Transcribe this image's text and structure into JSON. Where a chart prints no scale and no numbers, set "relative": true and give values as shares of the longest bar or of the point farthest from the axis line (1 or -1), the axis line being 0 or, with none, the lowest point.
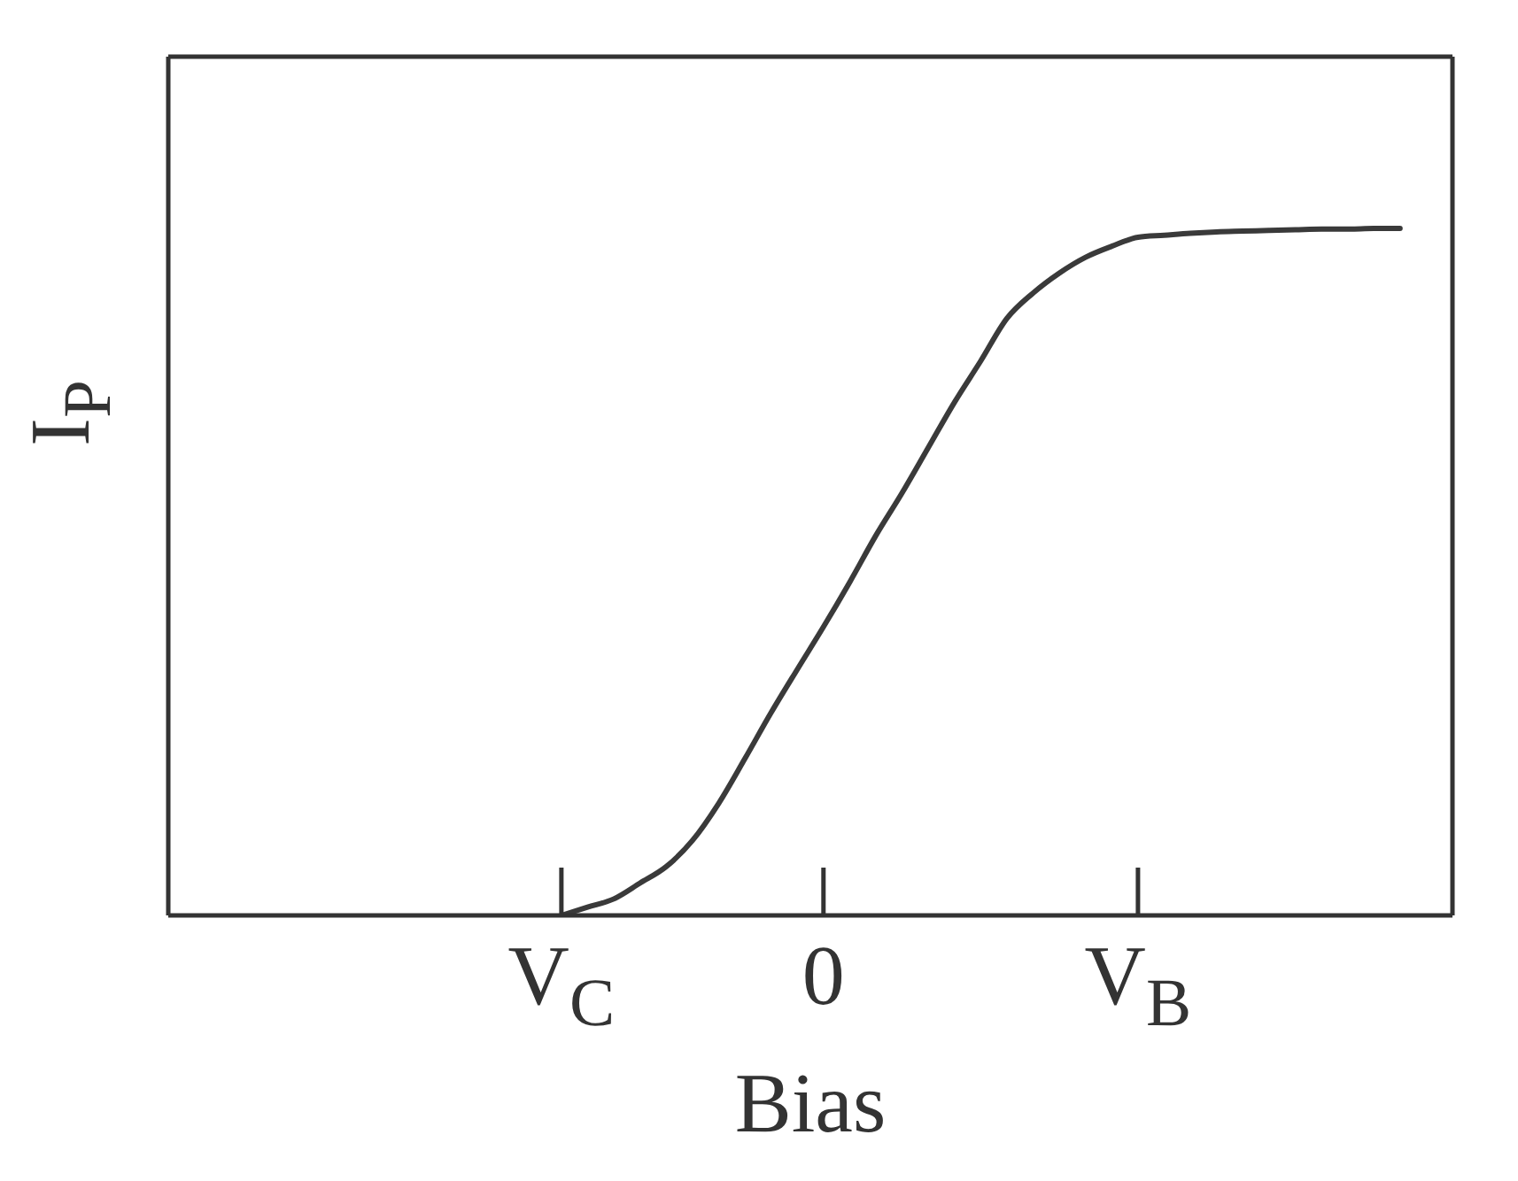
{
  "chart_data": {
    "type": "line",
    "xlabel": "Bias",
    "ylabel": "I$_{P}$",
    "relative": true,
    "color": "#3a3a3a",
    "categories": [
      null,
      null,
      null,
      null,
      null,
      null,
      null,
      null,
      null,
      null,
      null,
      null,
      null,
      null,
      null,
      "V$_{C}$",
      null,
      null,
      null,
      null,
      null,
      null,
      null,
      null,
      null,
      "0",
      null,
      null,
      null,
      null,
      null,
      null,
      null,
      null,
      null,
      null,
      null,
      "V$_{B}$",
      null,
      null,
      null,
      null,
      null,
      null,
      null,
      null,
      null,
      null,
      null,
      null
    ],
    "values": [
      null,
      null,
      null,
      null,
      null,
      null,
      null,
      null,
      null,
      null,
      null,
      null,
      null,
      null,
      null,
      0,
      0.012,
      0.024,
      0.047,
      0.071,
      0.109,
      0.163,
      0.228,
      0.295,
      0.358,
      0.42,
      0.485,
      0.553,
      0.615,
      0.681,
      0.747,
      0.807,
      0.869,
      0.906,
      0.935,
      0.958,
      0.974,
      0.987,
      0.99,
      0.993,
      0.995,
      0.996,
      0.997,
      0.998,
      0.999,
      0.999,
      1.0,
      1.0,
      null,
      null
    ]
  }
}
